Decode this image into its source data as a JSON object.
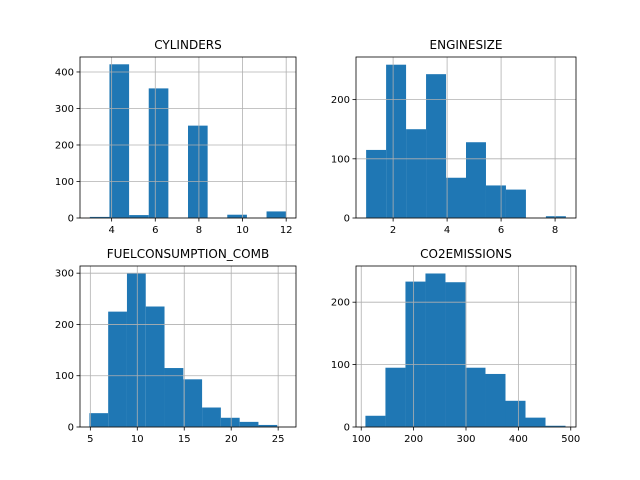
{
  "chart_data": [
    {
      "type": "bar",
      "title": "CYLINDERS",
      "grid": true,
      "color": "#1f77b4",
      "xlim": [
        2.55,
        12.45
      ],
      "ylim": [
        0,
        441
      ],
      "xticks": [
        4,
        6,
        8,
        10,
        12
      ],
      "yticks": [
        0,
        100,
        200,
        300,
        400
      ],
      "bins": [
        {
          "x0": 3.0,
          "x1": 3.9,
          "value": 3
        },
        {
          "x0": 3.9,
          "x1": 4.8,
          "value": 421
        },
        {
          "x0": 4.8,
          "x1": 5.7,
          "value": 8
        },
        {
          "x0": 5.7,
          "x1": 6.6,
          "value": 355
        },
        {
          "x0": 6.6,
          "x1": 7.5,
          "value": 0
        },
        {
          "x0": 7.5,
          "x1": 8.4,
          "value": 253
        },
        {
          "x0": 8.4,
          "x1": 9.3,
          "value": 0
        },
        {
          "x0": 9.3,
          "x1": 10.2,
          "value": 9
        },
        {
          "x0": 10.2,
          "x1": 11.1,
          "value": 0
        },
        {
          "x0": 11.1,
          "x1": 12.0,
          "value": 18
        }
      ]
    },
    {
      "type": "bar",
      "title": "ENGINESIZE",
      "grid": true,
      "color": "#1f77b4",
      "xlim": [
        0.625,
        8.775
      ],
      "ylim": [
        0,
        272
      ],
      "xticks": [
        2,
        4,
        6,
        8
      ],
      "yticks": [
        0,
        100,
        200
      ],
      "bins": [
        {
          "x0": 1.0,
          "x1": 1.74,
          "value": 115
        },
        {
          "x0": 1.74,
          "x1": 2.48,
          "value": 259
        },
        {
          "x0": 2.48,
          "x1": 3.22,
          "value": 150
        },
        {
          "x0": 3.22,
          "x1": 3.96,
          "value": 243
        },
        {
          "x0": 3.96,
          "x1": 4.7,
          "value": 68
        },
        {
          "x0": 4.7,
          "x1": 5.44,
          "value": 128
        },
        {
          "x0": 5.44,
          "x1": 6.18,
          "value": 55
        },
        {
          "x0": 6.18,
          "x1": 6.92,
          "value": 48
        },
        {
          "x0": 6.92,
          "x1": 7.66,
          "value": 0
        },
        {
          "x0": 7.66,
          "x1": 8.4,
          "value": 3
        }
      ]
    },
    {
      "type": "bar",
      "title": "FUELCONSUMPTION_COMB",
      "grid": true,
      "color": "#1f77b4",
      "xlim": [
        3.9,
        26.9
      ],
      "ylim": [
        0,
        314
      ],
      "xticks": [
        5,
        10,
        15,
        20,
        25
      ],
      "yticks": [
        0,
        100,
        200,
        300
      ],
      "bins": [
        {
          "x0": 4.9,
          "x1": 6.9,
          "value": 27
        },
        {
          "x0": 6.9,
          "x1": 8.9,
          "value": 225
        },
        {
          "x0": 8.9,
          "x1": 10.9,
          "value": 300
        },
        {
          "x0": 10.9,
          "x1": 12.9,
          "value": 235
        },
        {
          "x0": 12.9,
          "x1": 14.9,
          "value": 115
        },
        {
          "x0": 14.9,
          "x1": 16.9,
          "value": 93
        },
        {
          "x0": 16.9,
          "x1": 18.9,
          "value": 38
        },
        {
          "x0": 18.9,
          "x1": 20.9,
          "value": 18
        },
        {
          "x0": 20.9,
          "x1": 22.9,
          "value": 10
        },
        {
          "x0": 22.9,
          "x1": 24.9,
          "value": 4
        }
      ]
    },
    {
      "type": "bar",
      "title": "CO2EMISSIONS",
      "grid": true,
      "color": "#1f77b4",
      "xlim": [
        90,
        510
      ],
      "ylim": [
        0,
        258
      ],
      "xticks": [
        100,
        200,
        300,
        400,
        500
      ],
      "yticks": [
        0,
        100,
        200
      ],
      "bins": [
        {
          "x0": 108,
          "x1": 146.2,
          "value": 18
        },
        {
          "x0": 146.2,
          "x1": 184.4,
          "value": 95
        },
        {
          "x0": 184.4,
          "x1": 222.6,
          "value": 233
        },
        {
          "x0": 222.6,
          "x1": 260.8,
          "value": 246
        },
        {
          "x0": 260.8,
          "x1": 299.0,
          "value": 232
        },
        {
          "x0": 299.0,
          "x1": 337.2,
          "value": 95
        },
        {
          "x0": 337.2,
          "x1": 375.4,
          "value": 85
        },
        {
          "x0": 375.4,
          "x1": 413.6,
          "value": 42
        },
        {
          "x0": 413.6,
          "x1": 451.8,
          "value": 15
        },
        {
          "x0": 451.8,
          "x1": 490.0,
          "value": 2
        }
      ]
    }
  ]
}
